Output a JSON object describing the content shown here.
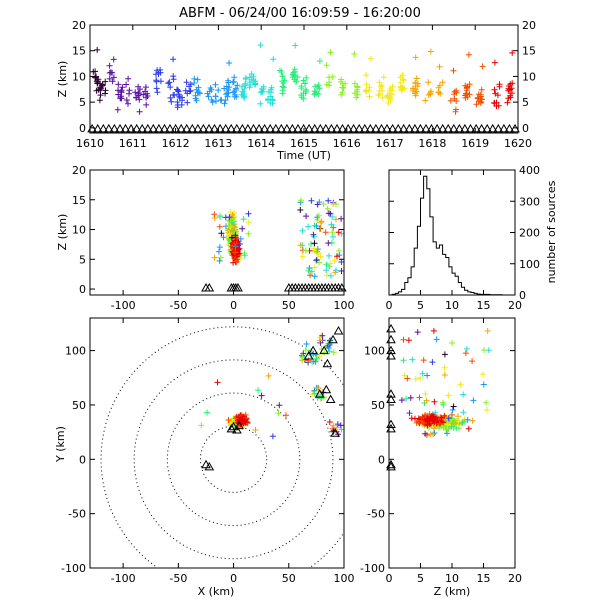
{
  "title": "ABFM - 06/24/00 16:09:59 - 16:20:00",
  "colors": {
    "axes": "#000000",
    "gradient": [
      "#2a0030",
      "#5a12a0",
      "#2b3ae8",
      "#1c96f0",
      "#1fe0d8",
      "#25f07a",
      "#8af020",
      "#f2e81a",
      "#f7a400",
      "#f25000",
      "#e80000"
    ]
  },
  "chart_data": [
    {
      "id": "time-height",
      "type": "scatter",
      "xlabel": "Time (UT)",
      "ylabel": "Z (km)",
      "xlim": [
        1610,
        1620
      ],
      "ylim": [
        -1,
        20
      ],
      "x_ticks": [
        "1610",
        "1611",
        "1612",
        "1613",
        "1614",
        "1615",
        "1616",
        "1617",
        "1618",
        "1619",
        "1620"
      ],
      "y_ticks": [
        "0",
        "5",
        "10",
        "15",
        "20"
      ],
      "note_markers": "crosses = VHF sources colored by time; triangles = ground stations",
      "series": [
        {
          "x": [
            1610.1,
            1610.2,
            1610.3,
            1610.5,
            1610.7,
            1610.9,
            1611.1,
            1611.3,
            1611.6,
            1611.9,
            1612.1,
            1612.3,
            1612.5,
            1612.8,
            1613.0,
            1613.2,
            1613.4,
            1613.6,
            1613.8,
            1614.0,
            1614.2,
            1614.5,
            1614.8,
            1615.0,
            1615.3,
            1615.6,
            1615.9,
            1616.2,
            1616.5,
            1616.8,
            1617.0,
            1617.3,
            1617.6,
            1617.9,
            1618.2,
            1618.5,
            1618.8,
            1619.1,
            1619.5,
            1619.8
          ],
          "y": [
            9.5,
            8.2,
            7.4,
            10.3,
            6.8,
            7.1,
            5.9,
            6.4,
            9.2,
            7.7,
            5.8,
            6.9,
            7.2,
            6.4,
            6.1,
            6.8,
            8.5,
            7.6,
            9.1,
            7.4,
            6.2,
            8.8,
            9.8,
            7.3,
            6.5,
            9.5,
            8.1,
            6.9,
            8.4,
            7.6,
            6.7,
            8.0,
            7.2,
            6.3,
            7.0,
            5.9,
            6.6,
            6.1,
            6.4,
            7.6
          ]
        }
      ],
      "ground_station_y": 0
    },
    {
      "id": "x-height",
      "type": "scatter",
      "xlabel": "",
      "ylabel": "Z (km)",
      "xlim": [
        -130,
        100
      ],
      "ylim": [
        -1,
        20
      ],
      "x_ticks": [
        "-100",
        "-50",
        "0",
        "50",
        "100"
      ],
      "y_ticks": [
        "0",
        "5",
        "10",
        "15",
        "20"
      ]
    },
    {
      "id": "altitude-histogram",
      "type": "bar",
      "xlabel": "",
      "ylabel": "number of sources",
      "xlim": [
        0,
        20
      ],
      "ylim": [
        0,
        400
      ],
      "x_ticks": [
        "0",
        "5",
        "10",
        "15",
        "20"
      ],
      "y_ticks": [
        "0",
        "100",
        "200",
        "300",
        "400"
      ],
      "x": [
        0.5,
        1,
        1.5,
        2,
        2.5,
        3,
        3.5,
        4,
        4.5,
        5,
        5.5,
        6,
        6.5,
        7,
        7.5,
        8,
        8.5,
        9,
        9.5,
        10,
        10.5,
        11,
        11.5,
        12,
        12.5,
        13,
        13.5,
        14,
        14.5,
        15,
        16,
        17,
        18,
        19,
        20
      ],
      "values": [
        0,
        2,
        5,
        10,
        18,
        40,
        55,
        90,
        150,
        220,
        310,
        380,
        340,
        250,
        170,
        150,
        160,
        130,
        120,
        90,
        70,
        60,
        40,
        25,
        15,
        10,
        8,
        5,
        3,
        2,
        2,
        1,
        1,
        0,
        0
      ]
    },
    {
      "id": "plan-view",
      "type": "scatter",
      "xlabel": "X (km)",
      "ylabel": "Y (km)",
      "xlim": [
        -130,
        100
      ],
      "ylim": [
        -100,
        130
      ],
      "x_ticks": [
        "-100",
        "-50",
        "0",
        "50",
        "100"
      ],
      "y_ticks": [
        "-100",
        "-50",
        "0",
        "50",
        "100"
      ],
      "range_rings_km": [
        30,
        60,
        90,
        120
      ]
    },
    {
      "id": "height-y",
      "type": "scatter",
      "xlabel": "Z (km)",
      "ylabel": "",
      "xlim": [
        0,
        20
      ],
      "ylim": [
        -100,
        130
      ],
      "x_ticks": [
        "0",
        "5",
        "10",
        "15",
        "20"
      ],
      "y_ticks": [
        "-100",
        "-50",
        "0",
        "50",
        "100"
      ]
    }
  ]
}
